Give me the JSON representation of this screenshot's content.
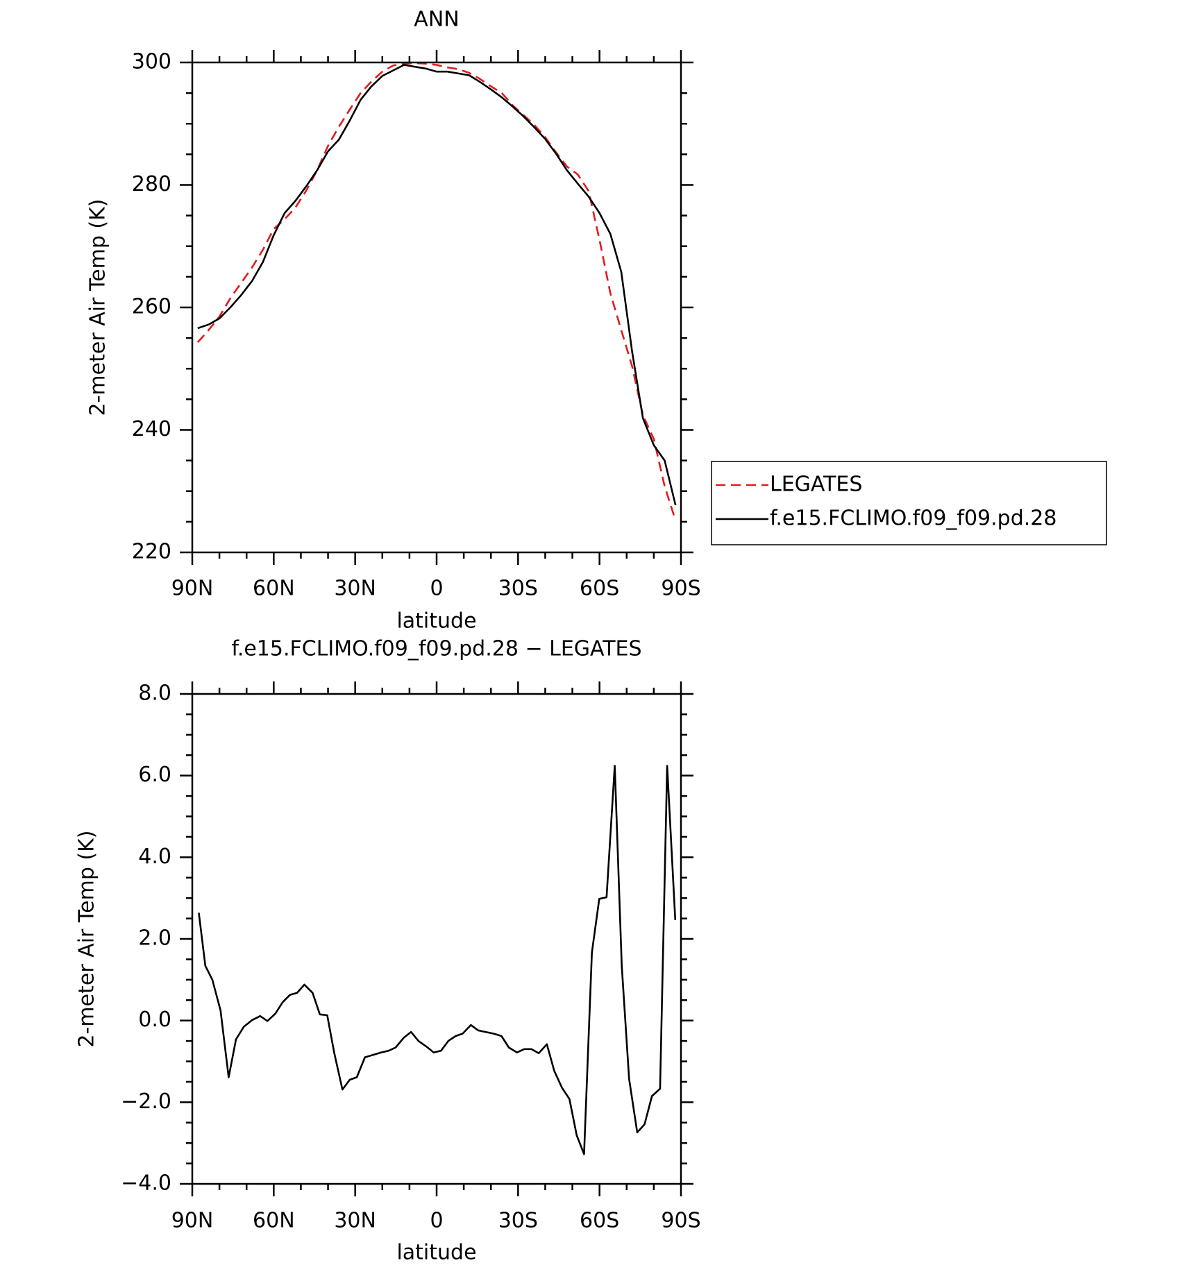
{
  "chart_data": [
    {
      "type": "line",
      "title": "ANN",
      "xlabel": "latitude",
      "ylabel": "2-meter Air Temp (K)",
      "x": [
        88,
        84,
        80,
        76,
        72,
        68,
        64,
        60,
        56,
        52,
        48,
        44,
        40,
        36,
        32,
        28,
        24,
        20,
        16,
        12,
        8,
        4,
        0,
        -4,
        -8,
        -12,
        -16,
        -20,
        -24,
        -28,
        -32,
        -36,
        -40,
        -44,
        -48,
        -52,
        -56,
        -60,
        -64,
        -68,
        -72,
        -76,
        -80,
        -84,
        -88
      ],
      "series": [
        {
          "name": "LEGATES",
          "color": "#e41a1c",
          "linestyle": "dashed",
          "values": [
            254.3,
            256.3,
            258.5,
            261.5,
            264.0,
            266.5,
            269.4,
            272.8,
            274.4,
            276.3,
            279.1,
            282.4,
            286.4,
            289.5,
            292.3,
            295.0,
            296.9,
            298.5,
            299.5,
            299.8,
            299.9,
            299.8,
            299.6,
            299.2,
            298.9,
            298.3,
            297.3,
            296.1,
            295.0,
            293.0,
            291.4,
            289.8,
            287.8,
            285.3,
            283.0,
            281.7,
            279.0,
            271.0,
            262.3,
            256.3,
            250.4,
            242.4,
            238.5,
            230.8,
            225.2
          ]
        },
        {
          "name": "f.e15.FCLIMO.f09_f09.pd.28",
          "color": "#000000",
          "linestyle": "solid",
          "values": [
            256.6,
            257.2,
            258.2,
            260.0,
            262.0,
            264.3,
            267.4,
            271.8,
            275.4,
            277.4,
            279.8,
            282.4,
            285.5,
            287.4,
            290.5,
            293.9,
            296.1,
            297.8,
            298.7,
            299.6,
            299.3,
            299.0,
            298.5,
            298.5,
            298.2,
            297.9,
            296.8,
            295.6,
            294.3,
            292.8,
            291.2,
            289.4,
            287.5,
            285.1,
            282.4,
            280.2,
            278.1,
            275.4,
            272.0,
            265.8,
            252.8,
            241.9,
            237.5,
            235.0,
            227.7
          ]
        }
      ],
      "xlim": [
        90,
        -90
      ],
      "xticks": [
        {
          "value": 90,
          "label": "90N"
        },
        {
          "value": 60,
          "label": "60N"
        },
        {
          "value": 30,
          "label": "30N"
        },
        0,
        {
          "value": -30,
          "label": "30S"
        },
        {
          "value": -60,
          "label": "60S"
        },
        {
          "value": -90,
          "label": "90S"
        }
      ],
      "ylim": [
        220,
        300
      ],
      "yticks": [
        220,
        240,
        260,
        280,
        300
      ],
      "legend": "outside-right"
    },
    {
      "type": "line",
      "title": "f.e15.FCLIMO.f09_f09.pd.28 − LEGATES",
      "xlabel": "latitude",
      "ylabel": "2-meter Air Temp (K)",
      "x": [
        87.6,
        85.2,
        82.6,
        79.6,
        76.6,
        73.9,
        71.0,
        68.0,
        65.0,
        62.3,
        59.4,
        56.7,
        54.0,
        51.4,
        48.7,
        45.7,
        43.0,
        40.3,
        37.7,
        34.7,
        32.0,
        29.4,
        26.4,
        23.4,
        20.4,
        17.7,
        15.1,
        12.1,
        9.4,
        6.7,
        3.7,
        1.1,
        -1.6,
        -4.3,
        -7.0,
        -9.6,
        -12.6,
        -15.3,
        -18.0,
        -21.0,
        -23.9,
        -26.6,
        -29.6,
        -32.3,
        -34.9,
        -37.6,
        -40.6,
        -43.3,
        -46.2,
        -48.9,
        -51.6,
        -54.3,
        -57.2,
        -59.9,
        -62.6,
        -65.6,
        -68.2,
        -70.9,
        -73.9,
        -76.6,
        -79.3,
        -82.3,
        -84.9,
        -87.9
      ],
      "series": [
        {
          "color": "#000000",
          "linestyle": "solid",
          "values": [
            2.64,
            1.34,
            1.0,
            0.25,
            -1.39,
            -0.46,
            -0.15,
            0.01,
            0.11,
            -0.01,
            0.17,
            0.45,
            0.63,
            0.68,
            0.88,
            0.68,
            0.15,
            0.13,
            -0.8,
            -1.69,
            -1.45,
            -1.39,
            -0.9,
            -0.84,
            -0.78,
            -0.74,
            -0.66,
            -0.42,
            -0.28,
            -0.5,
            -0.64,
            -0.78,
            -0.74,
            -0.5,
            -0.38,
            -0.32,
            -0.11,
            -0.24,
            -0.28,
            -0.32,
            -0.38,
            -0.66,
            -0.78,
            -0.7,
            -0.7,
            -0.8,
            -0.58,
            -1.23,
            -1.65,
            -1.92,
            -2.81,
            -3.27,
            1.67,
            2.98,
            3.02,
            6.24,
            1.34,
            -1.43,
            -2.74,
            -2.54,
            -1.85,
            -1.67,
            6.24,
            2.46
          ]
        }
      ],
      "xlim": [
        90,
        -90
      ],
      "xticks": [
        {
          "value": 90,
          "label": "90N"
        },
        {
          "value": 60,
          "label": "60N"
        },
        {
          "value": 30,
          "label": "30N"
        },
        0,
        {
          "value": -30,
          "label": "30S"
        },
        {
          "value": -60,
          "label": "60S"
        },
        {
          "value": -90,
          "label": "90S"
        }
      ],
      "ylim": [
        -4,
        8
      ],
      "yticks": [
        {
          "value": -4,
          "label": "−4.0"
        },
        {
          "value": -2,
          "label": "−2.0"
        },
        {
          "value": 0,
          "label": "0.0"
        },
        {
          "value": 2,
          "label": "2.0"
        },
        {
          "value": 4,
          "label": "4.0"
        },
        {
          "value": 6,
          "label": "6.0"
        },
        {
          "value": 8,
          "label": "8.0"
        }
      ]
    }
  ]
}
